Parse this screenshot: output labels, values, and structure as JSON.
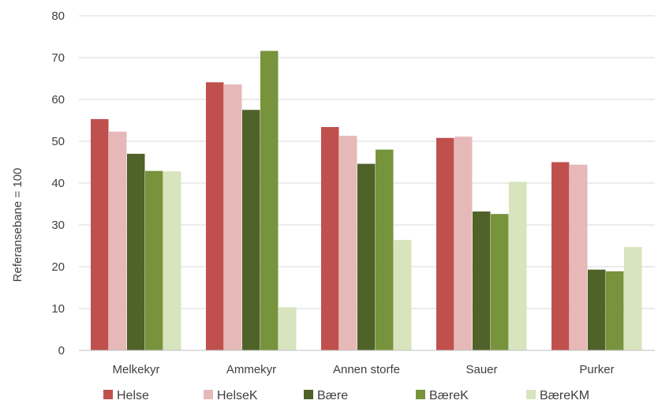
{
  "chart_data": {
    "type": "bar",
    "title": "",
    "xlabel": "",
    "ylabel": "Referansebane = 100",
    "ylim": [
      0,
      80
    ],
    "yticks": [
      0,
      10,
      20,
      30,
      40,
      50,
      60,
      70,
      80
    ],
    "grid": true,
    "legend_position": "bottom",
    "categories": [
      "Melkekyr",
      "Ammekyr",
      "Annen storfe",
      "Sauer",
      "Purker"
    ],
    "series": [
      {
        "name": "Helse",
        "color": "#c0504d",
        "values": [
          55.3,
          64.1,
          53.4,
          50.8,
          45.0
        ]
      },
      {
        "name": "HelseK",
        "color": "#e6b9b8",
        "values": [
          52.3,
          63.6,
          51.3,
          51.1,
          44.4
        ]
      },
      {
        "name": "Bære",
        "color": "#4f6228",
        "values": [
          47.0,
          57.5,
          44.6,
          33.2,
          19.3
        ]
      },
      {
        "name": "BæreK",
        "color": "#77933c",
        "values": [
          42.9,
          71.6,
          48.0,
          32.6,
          18.9
        ]
      },
      {
        "name": "BæreKM",
        "color": "#d7e4bd",
        "values": [
          42.8,
          10.3,
          26.4,
          40.3,
          24.7
        ]
      }
    ]
  }
}
